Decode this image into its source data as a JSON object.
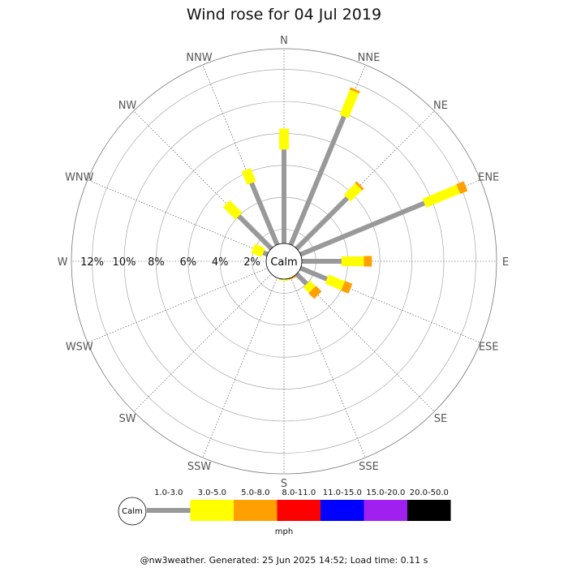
{
  "chart_data": {
    "type": "wind-rose",
    "title": "Wind rose for 04 Jul 2019",
    "calm_label": "Calm",
    "directions": [
      "N",
      "NNE",
      "NE",
      "ENE",
      "E",
      "ESE",
      "SE",
      "SSE",
      "S",
      "SSW",
      "SW",
      "WSW",
      "W",
      "WNW",
      "NW",
      "NNW"
    ],
    "ring_values": [
      2,
      4,
      6,
      8,
      10,
      12
    ],
    "ring_labels": [
      "2%",
      "4%",
      "6%",
      "8%",
      "10%",
      "12%"
    ],
    "radial_max": 13.3,
    "grid": true,
    "unit": "mph",
    "bins": [
      {
        "label": "1.0-3.0",
        "color": "#999999"
      },
      {
        "label": "3.0-5.0",
        "color": "#ffff00"
      },
      {
        "label": "5.0-8.0",
        "color": "#ffa000"
      },
      {
        "label": "8.0-11.0",
        "color": "#ff0000"
      },
      {
        "label": "11.0-15.0",
        "color": "#0000ff"
      },
      {
        "label": "15.0-20.0",
        "color": "#a020f0"
      },
      {
        "label": "20.0-50.0",
        "color": "#000000"
      }
    ],
    "series_percent_by_direction": [
      [
        7.0,
        1.3,
        0,
        0,
        0,
        0,
        0
      ],
      [
        9.8,
        1.7,
        0.15,
        0,
        0,
        0,
        0
      ],
      [
        5.6,
        1.0,
        0.15,
        0,
        0,
        0,
        0
      ],
      [
        9.5,
        2.3,
        0.5,
        0,
        0,
        0,
        0
      ],
      [
        3.6,
        1.4,
        0.5,
        0,
        0,
        0,
        0
      ],
      [
        2.9,
        1.1,
        0.5,
        0,
        0,
        0,
        0
      ],
      [
        2.0,
        0.5,
        0.5,
        0,
        0,
        0,
        0
      ],
      [
        0.9,
        0.2,
        0.1,
        0,
        0,
        0,
        0
      ],
      [
        0.9,
        0.3,
        0,
        0,
        0,
        0,
        0
      ],
      [
        0.6,
        0.2,
        0,
        0,
        0,
        0,
        0
      ],
      [
        0.4,
        0.2,
        0,
        0,
        0,
        0,
        0
      ],
      [
        0.4,
        0.2,
        0,
        0,
        0,
        0,
        0
      ],
      [
        0.5,
        0.3,
        0,
        0,
        0,
        0,
        0
      ],
      [
        1.4,
        0.7,
        0,
        0,
        0,
        0,
        0
      ],
      [
        4.0,
        1.1,
        0,
        0,
        0,
        0,
        0
      ],
      [
        5.3,
        0.9,
        0,
        0,
        0,
        0,
        0
      ]
    ]
  },
  "footer": "@nw3weather. Generated: 25 Jun 2025 14:52; Load time: 0.11 s"
}
